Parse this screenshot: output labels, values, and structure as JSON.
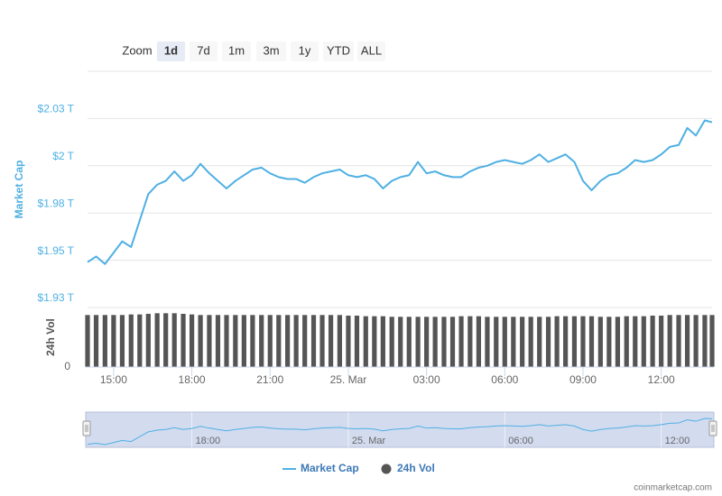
{
  "chart_data": {
    "type": "line",
    "zoom": {
      "label": "Zoom",
      "buttons": [
        "1d",
        "7d",
        "1m",
        "3m",
        "1y",
        "YTD",
        "ALL"
      ],
      "selected": 0
    },
    "y_label": "Market Cap",
    "y2_label": "24h Vol",
    "x": [
      14,
      14.33,
      14.67,
      15,
      15.33,
      15.67,
      16,
      16.33,
      16.67,
      17,
      17.33,
      17.67,
      18,
      18.33,
      18.67,
      19,
      19.33,
      19.67,
      20,
      20.33,
      20.67,
      21,
      21.33,
      21.67,
      22,
      22.33,
      22.67,
      23,
      23.33,
      23.67,
      24,
      24.33,
      24.67,
      25,
      25.33,
      25.67,
      26,
      26.33,
      26.67,
      27,
      27.33,
      27.67,
      28,
      28.33,
      28.67,
      29,
      29.33,
      29.67,
      30,
      30.33,
      30.67,
      31,
      31.33,
      31.67,
      32,
      32.33,
      32.67,
      33,
      33.33,
      33.67,
      34,
      34.33,
      34.67,
      35,
      35.33,
      35.67,
      36,
      36.33,
      36.67,
      37,
      37.33,
      37.67,
      37.95
    ],
    "xlim": [
      14,
      37.95
    ],
    "xticks": [
      {
        "value": 15,
        "label": "15:00"
      },
      {
        "value": 18,
        "label": "18:00"
      },
      {
        "value": 21,
        "label": "21:00"
      },
      {
        "value": 24,
        "label": "25. Mar"
      },
      {
        "value": 27,
        "label": "03:00"
      },
      {
        "value": 30,
        "label": "06:00"
      },
      {
        "value": 33,
        "label": "09:00"
      },
      {
        "value": 36,
        "label": "12:00"
      }
    ],
    "ylim": [
      1.925,
      2.05
    ],
    "yticks": [
      {
        "value": 1.925,
        "label": "$1.93 T"
      },
      {
        "value": 1.95,
        "label": "$1.95 T"
      },
      {
        "value": 1.975,
        "label": "$1.98 T"
      },
      {
        "value": 2,
        "label": "$2 T"
      },
      {
        "value": 2.025,
        "label": "$2.03 T"
      }
    ],
    "y2lim": [
      0,
      100
    ],
    "y2ticks": [
      0
    ],
    "grid": true,
    "series": [
      {
        "name": "Market Cap",
        "color": "#4fb0e3",
        "values": [
          1.949,
          1.952,
          1.948,
          1.954,
          1.96,
          1.957,
          1.971,
          1.985,
          1.99,
          1.992,
          1.997,
          1.992,
          1.995,
          2.001,
          1.996,
          1.992,
          1.988,
          1.992,
          1.995,
          1.998,
          1.999,
          1.996,
          1.994,
          1.993,
          1.993,
          1.991,
          1.994,
          1.996,
          1.997,
          1.998,
          1.995,
          1.994,
          1.995,
          1.993,
          1.988,
          1.992,
          1.994,
          1.995,
          2.002,
          1.996,
          1.997,
          1.995,
          1.994,
          1.994,
          1.997,
          1.999,
          2.0,
          2.002,
          2.003,
          2.002,
          2.001,
          2.003,
          2.006,
          2.002,
          2.004,
          2.006,
          2.002,
          1.992,
          1.987,
          1.992,
          1.995,
          1.996,
          1.999,
          2.003,
          2.002,
          2.003,
          2.006,
          2.01,
          2.011,
          2.02,
          2.016,
          2.024,
          2.023
        ]
      },
      {
        "name": "24h Vol",
        "color": "#555555",
        "type": "bar",
        "axis": "y2",
        "values": [
          88,
          88,
          88,
          88,
          88,
          89,
          89,
          90,
          91,
          91,
          91,
          90,
          89,
          88,
          88,
          88,
          88,
          88,
          88,
          88,
          88,
          88,
          88,
          88,
          88,
          88,
          88,
          88,
          88,
          88,
          87,
          87,
          86,
          86,
          86,
          85,
          85,
          85,
          85,
          85,
          85,
          85,
          85,
          86,
          86,
          86,
          85,
          85,
          85,
          85,
          85,
          85,
          85,
          85,
          86,
          86,
          86,
          86,
          86,
          85,
          85,
          85,
          86,
          86,
          86,
          87,
          87,
          88,
          88,
          88,
          88,
          88,
          88
        ]
      }
    ],
    "navigator": {
      "xticks": [
        {
          "value": 18,
          "label": "18:00"
        },
        {
          "value": 24,
          "label": "25. Mar"
        },
        {
          "value": 30,
          "label": "06:00"
        },
        {
          "value": 36,
          "label": "12:00"
        }
      ]
    },
    "credit": "coinmarketcap.com"
  }
}
